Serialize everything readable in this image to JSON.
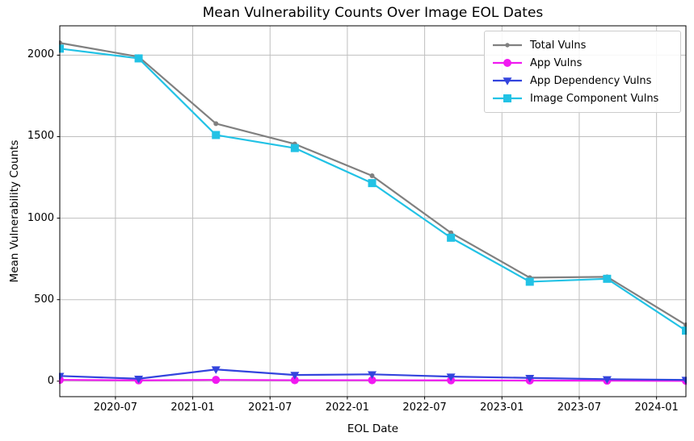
{
  "chart_data": {
    "type": "line",
    "title": "Mean Vulnerability Counts Over Image EOL Dates",
    "xlabel": "EOL Date",
    "ylabel": "Mean Vulnerability Counts",
    "grid": true,
    "legend_position": "upper right",
    "x": [
      2020.14,
      2020.65,
      2021.15,
      2021.66,
      2022.16,
      2022.67,
      2023.18,
      2023.68,
      2024.19
    ],
    "x_approx_months": [
      "2020-02",
      "2020-08",
      "2021-02",
      "2021-08",
      "2022-03",
      "2022-09",
      "2023-03",
      "2023-09",
      "2024-03"
    ],
    "xlim": [
      2020.14,
      2024.19
    ],
    "ylim": [
      -95,
      2180
    ],
    "x_ticks": [
      {
        "v": 2020.5,
        "label": "2020-07"
      },
      {
        "v": 2021.0,
        "label": "2021-01"
      },
      {
        "v": 2021.5,
        "label": "2021-07"
      },
      {
        "v": 2022.0,
        "label": "2022-01"
      },
      {
        "v": 2022.5,
        "label": "2022-07"
      },
      {
        "v": 2023.0,
        "label": "2023-01"
      },
      {
        "v": 2023.5,
        "label": "2023-07"
      },
      {
        "v": 2024.0,
        "label": "2024-01"
      }
    ],
    "y_ticks": [
      {
        "v": 0,
        "label": "0"
      },
      {
        "v": 500,
        "label": "500"
      },
      {
        "v": 1000,
        "label": "1000"
      },
      {
        "v": 1500,
        "label": "1500"
      },
      {
        "v": 2000,
        "label": "2000"
      }
    ],
    "series": [
      {
        "name": "Total Vulns",
        "color": "#808080",
        "marker": "dot",
        "values": [
          2075,
          1990,
          1580,
          1455,
          1260,
          910,
          635,
          640,
          345
        ]
      },
      {
        "name": "App Vulns",
        "color": "#f119f1",
        "marker": "circle",
        "values": [
          8,
          5,
          8,
          6,
          6,
          5,
          4,
          3,
          2
        ]
      },
      {
        "name": "App Dependency Vulns",
        "color": "#3344dd",
        "marker": "triangle-down",
        "values": [
          32,
          15,
          72,
          38,
          42,
          28,
          20,
          12,
          8
        ]
      },
      {
        "name": "Image Component Vulns",
        "color": "#22c2e5",
        "marker": "square",
        "values": [
          2040,
          1980,
          1510,
          1430,
          1215,
          880,
          610,
          628,
          310
        ]
      }
    ]
  }
}
